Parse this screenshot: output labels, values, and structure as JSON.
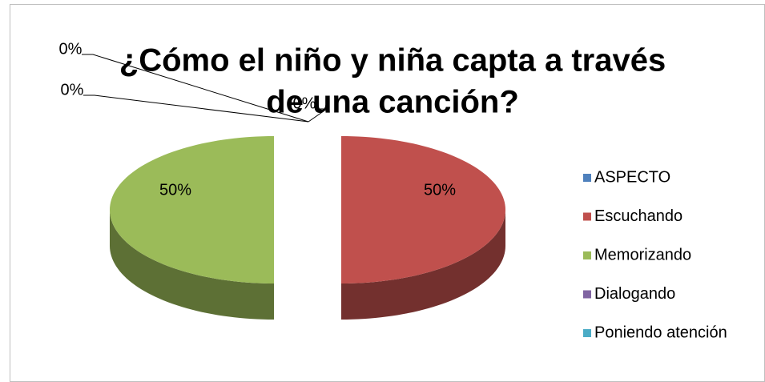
{
  "chart_data": {
    "type": "pie",
    "title": "¿Cómo  el niño y niña capta a través de una canción?",
    "title_lines": [
      "¿Cómo  el niño y niña capta a través",
      "de una canción?"
    ],
    "categories": [
      "ASPECTO",
      "Escuchando",
      "Memorizando",
      "Dialogando",
      "Poniendo atención"
    ],
    "values": [
      0,
      50,
      50,
      0,
      0
    ],
    "value_labels": [
      "0%",
      "50%",
      "50%",
      "0%",
      "0%"
    ],
    "colors": [
      "#4f81bd",
      "#c0504d",
      "#9bbb59",
      "#8064a2",
      "#4bacc6"
    ],
    "legend": "right"
  }
}
